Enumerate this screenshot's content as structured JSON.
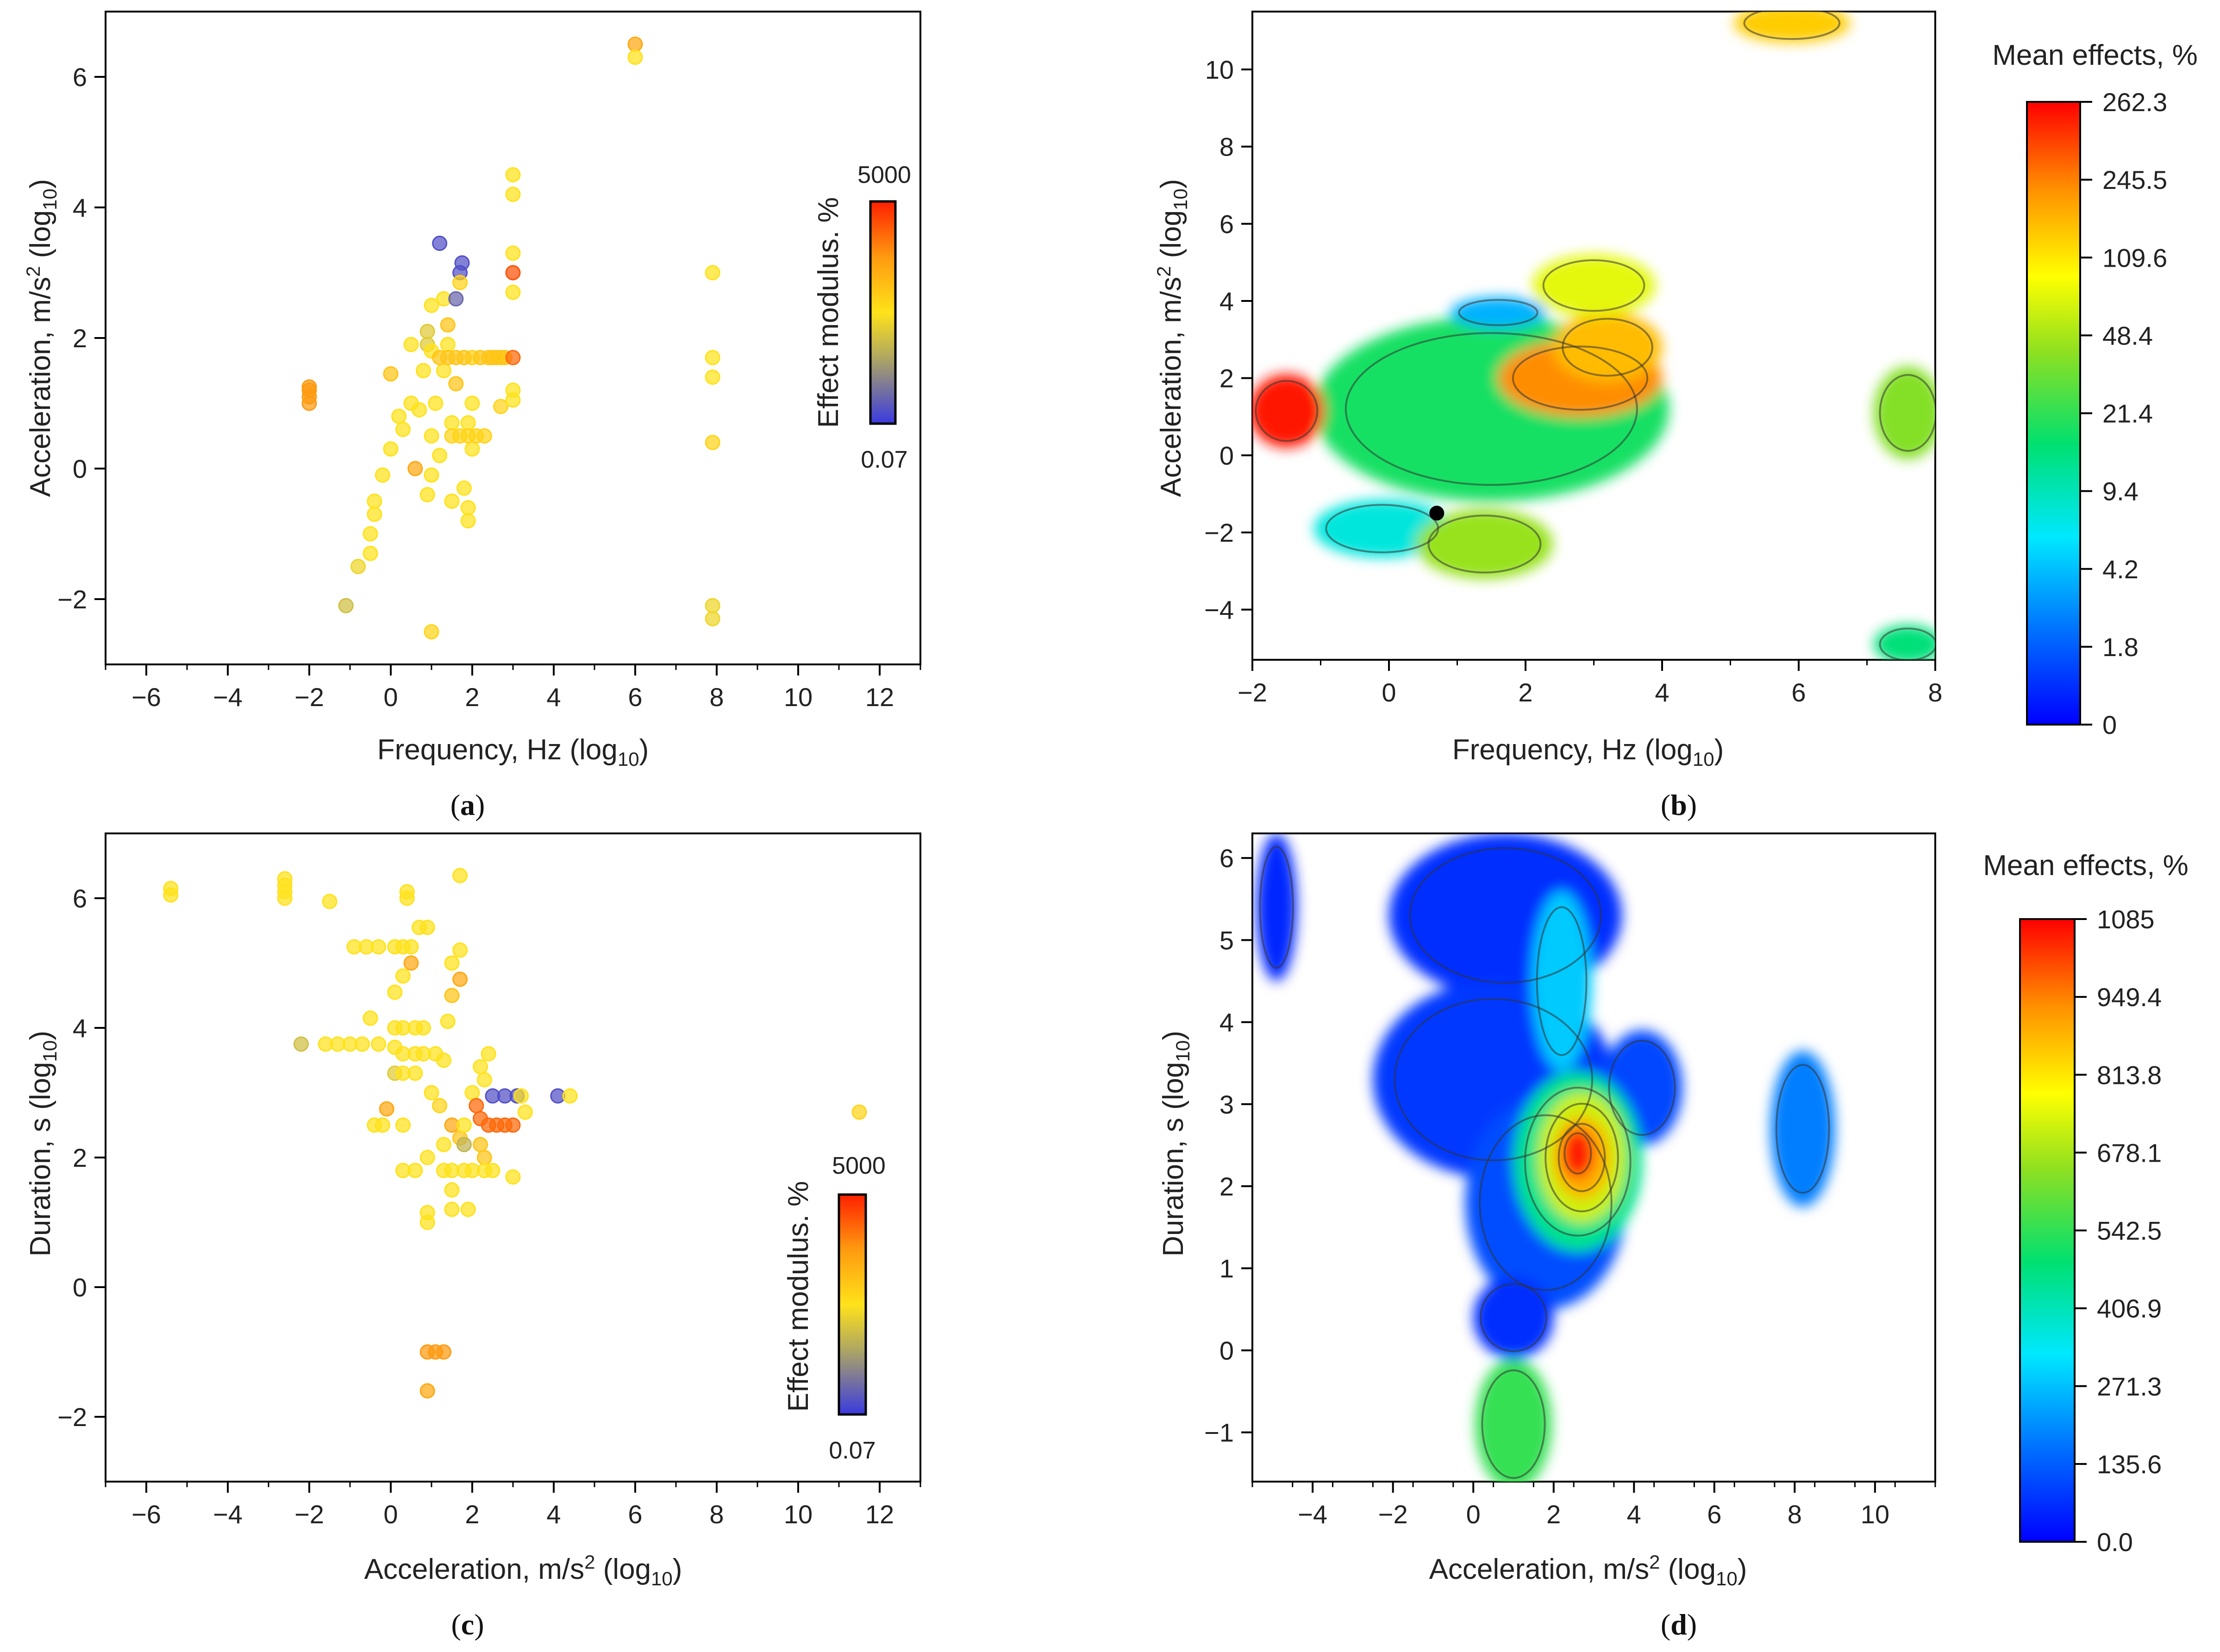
{
  "figure": {
    "captions": [
      "(a)",
      "(b)",
      "(c)",
      "(d)"
    ],
    "caption_letters": [
      "a",
      "b",
      "c",
      "d"
    ]
  },
  "chart_data": [
    {
      "id": "a",
      "type": "scatter",
      "title": "",
      "xlabel": "Frequency, Hz (log₁₀)",
      "ylabel": "Acceleration, m/s² (log₁₀)",
      "xlim": [
        -7,
        13
      ],
      "ylim": [
        -3,
        7
      ],
      "xticks": [
        -6,
        -4,
        -2,
        0,
        2,
        4,
        6,
        8,
        10,
        12
      ],
      "xtick_labels": [
        "−6",
        "−4",
        "−2",
        "0",
        "2",
        "4",
        "6",
        "8",
        "10",
        "12"
      ],
      "yticks": [
        -2,
        0,
        2,
        4,
        6
      ],
      "ytick_labels": [
        "−2",
        "0",
        "2",
        "4",
        "6"
      ],
      "colorbar": {
        "label": "Effect modulus. %",
        "max_label": "5000",
        "min_label": "0.07",
        "stops": [
          "#3a3ae0",
          "#b0a860",
          "#ffe21a",
          "#ff9a10",
          "#ff2000"
        ]
      },
      "points": [
        [
          -2,
          1.2,
          0.75
        ],
        [
          -2,
          1.1,
          0.75
        ],
        [
          -2,
          1.0,
          0.75
        ],
        [
          -2,
          1.25,
          0.75
        ],
        [
          -1.1,
          -2.1,
          0.35
        ],
        [
          -0.8,
          -1.5,
          0.45
        ],
        [
          -0.5,
          -1.3,
          0.5
        ],
        [
          -0.5,
          -1.0,
          0.5
        ],
        [
          -0.4,
          -0.5,
          0.5
        ],
        [
          -0.4,
          -0.7,
          0.5
        ],
        [
          -0.2,
          -0.1,
          0.5
        ],
        [
          0,
          1.45,
          0.6
        ],
        [
          0,
          0.3,
          0.5
        ],
        [
          0.2,
          0.8,
          0.5
        ],
        [
          0.3,
          0.6,
          0.5
        ],
        [
          0.5,
          1.0,
          0.5
        ],
        [
          0.5,
          1.9,
          0.5
        ],
        [
          0.6,
          0,
          0.7
        ],
        [
          0.7,
          0.9,
          0.5
        ],
        [
          0.8,
          1.5,
          0.5
        ],
        [
          0.9,
          1.9,
          0.4
        ],
        [
          0.9,
          2.1,
          0.4
        ],
        [
          0.9,
          -0.4,
          0.5
        ],
        [
          1.0,
          2.5,
          0.5
        ],
        [
          1.0,
          0.5,
          0.5
        ],
        [
          1.0,
          1.8,
          0.5
        ],
        [
          1.0,
          -0.1,
          0.5
        ],
        [
          1.1,
          1.0,
          0.5
        ],
        [
          1.2,
          3.45,
          0.05
        ],
        [
          1.2,
          0.2,
          0.5
        ],
        [
          1.3,
          1.5,
          0.5
        ],
        [
          1.3,
          2.6,
          0.5
        ],
        [
          1.4,
          1.9,
          0.5
        ],
        [
          1.4,
          2.2,
          0.6
        ],
        [
          1.5,
          0.7,
          0.5
        ],
        [
          1.5,
          -0.5,
          0.5
        ],
        [
          1.6,
          1.3,
          0.6
        ],
        [
          1.6,
          2.6,
          0.1
        ],
        [
          1.7,
          3.0,
          0.05
        ],
        [
          1.7,
          2.85,
          0.55
        ],
        [
          1.75,
          3.15,
          0.05
        ],
        [
          1.8,
          -0.3,
          0.5
        ],
        [
          1.9,
          0.7,
          0.5
        ],
        [
          1.9,
          -0.6,
          0.5
        ],
        [
          1.9,
          -0.8,
          0.5
        ],
        [
          2.0,
          0.3,
          0.5
        ],
        [
          2.0,
          1.7,
          0.55
        ],
        [
          2.2,
          1.7,
          0.6
        ],
        [
          2.4,
          1.7,
          0.6
        ],
        [
          2.5,
          1.7,
          0.6
        ],
        [
          2.6,
          1.7,
          0.6
        ],
        [
          2.7,
          1.7,
          0.6
        ],
        [
          2.8,
          1.7,
          0.6
        ],
        [
          3.0,
          1.7,
          0.85
        ],
        [
          1.2,
          1.7,
          0.6
        ],
        [
          1.4,
          1.7,
          0.6
        ],
        [
          1.6,
          1.7,
          0.6
        ],
        [
          1.8,
          1.7,
          0.6
        ],
        [
          1.5,
          0.5,
          0.55
        ],
        [
          1.7,
          0.5,
          0.55
        ],
        [
          1.9,
          0.5,
          0.55
        ],
        [
          2.1,
          0.5,
          0.55
        ],
        [
          2.3,
          0.5,
          0.55
        ],
        [
          2.0,
          1.0,
          0.5
        ],
        [
          2.7,
          0.95,
          0.55
        ],
        [
          3.0,
          4.5,
          0.5
        ],
        [
          3.0,
          4.2,
          0.5
        ],
        [
          3.0,
          3.3,
          0.5
        ],
        [
          3.0,
          3.0,
          0.9
        ],
        [
          3.0,
          2.7,
          0.5
        ],
        [
          3.0,
          1.2,
          0.5
        ],
        [
          3.0,
          1.05,
          0.5
        ],
        [
          6.0,
          6.5,
          0.7
        ],
        [
          6.0,
          6.3,
          0.5
        ],
        [
          7.9,
          3.0,
          0.5
        ],
        [
          7.9,
          1.7,
          0.5
        ],
        [
          7.9,
          1.4,
          0.5
        ],
        [
          7.9,
          0.4,
          0.55
        ],
        [
          7.9,
          -2.1,
          0.45
        ],
        [
          7.9,
          -2.3,
          0.45
        ],
        [
          1.0,
          -2.5,
          0.55
        ]
      ]
    },
    {
      "id": "b",
      "type": "heatmap",
      "title": "Mean effects, %",
      "xlabel": "Frequency, Hz (log₁₀)",
      "ylabel": "Acceleration, m/s² (log₁₀)",
      "xlim": [
        -2,
        8
      ],
      "ylim": [
        -5.3,
        11.5
      ],
      "xticks": [
        -2,
        0,
        2,
        4,
        6,
        8
      ],
      "xtick_labels": [
        "−2",
        "0",
        "2",
        "4",
        "6",
        "8"
      ],
      "yticks": [
        -4,
        -2,
        0,
        2,
        4,
        6,
        8,
        10
      ],
      "ytick_labels": [
        "−4",
        "−2",
        "0",
        "2",
        "4",
        "6",
        "8",
        "10"
      ],
      "colorbar": {
        "label": "Mean effects, %",
        "tick_labels": [
          "262.3",
          "245.5",
          "109.6",
          "48.4",
          "21.4",
          "9.4",
          "4.2",
          "1.8",
          "0"
        ]
      },
      "marker": {
        "x": 0.7,
        "y": -1.5
      },
      "regions": [
        {
          "cx": 1.5,
          "cy": 1.2,
          "rx": 2.6,
          "ry": 2.4,
          "level": 0.45
        },
        {
          "cx": 2.8,
          "cy": 2.0,
          "rx": 1.2,
          "ry": 1.0,
          "level": 0.86
        },
        {
          "cx": 3.2,
          "cy": 2.8,
          "rx": 0.8,
          "ry": 0.9,
          "level": 0.8
        },
        {
          "cx": 1.6,
          "cy": 3.7,
          "rx": 0.7,
          "ry": 0.4,
          "level": 0.22
        },
        {
          "cx": 3.0,
          "cy": 4.4,
          "rx": 0.9,
          "ry": 0.8,
          "level": 0.68
        },
        {
          "cx": -0.1,
          "cy": -1.9,
          "rx": 1.0,
          "ry": 0.75,
          "level": 0.32
        },
        {
          "cx": 1.4,
          "cy": -2.3,
          "rx": 1.0,
          "ry": 0.9,
          "level": 0.58
        },
        {
          "cx": -1.5,
          "cy": 1.15,
          "rx": 0.55,
          "ry": 0.95,
          "level": 0.98
        },
        {
          "cx": 5.9,
          "cy": 11.2,
          "rx": 0.85,
          "ry": 0.5,
          "level": 0.78
        },
        {
          "cx": 7.6,
          "cy": 1.1,
          "rx": 0.5,
          "ry": 1.2,
          "level": 0.56
        },
        {
          "cx": 7.6,
          "cy": -4.9,
          "rx": 0.5,
          "ry": 0.5,
          "level": 0.42
        }
      ]
    },
    {
      "id": "c",
      "type": "scatter",
      "title": "",
      "xlabel": "Acceleration, m/s² (log₁₀)",
      "ylabel": "Duration, s (log₁₀)",
      "xlim": [
        -7,
        13
      ],
      "ylim": [
        -3,
        7
      ],
      "xticks": [
        -6,
        -4,
        -2,
        0,
        2,
        4,
        6,
        8,
        10,
        12
      ],
      "xtick_labels": [
        "−6",
        "−4",
        "−2",
        "0",
        "2",
        "4",
        "6",
        "8",
        "10",
        "12"
      ],
      "yticks": [
        -2,
        0,
        2,
        4,
        6
      ],
      "ytick_labels": [
        "−2",
        "0",
        "2",
        "4",
        "6"
      ],
      "colorbar": {
        "label": "Effect modulus. %",
        "max_label": "5000",
        "min_label": "0.07",
        "stops": [
          "#3a3ae0",
          "#b0a860",
          "#ffe21a",
          "#ff9a10",
          "#ff2000"
        ]
      },
      "points": [
        [
          -5.4,
          6.15,
          0.5
        ],
        [
          -5.4,
          6.05,
          0.5
        ],
        [
          -2.6,
          6.3,
          0.5
        ],
        [
          -2.6,
          6.2,
          0.5
        ],
        [
          -2.6,
          6.1,
          0.5
        ],
        [
          -2.6,
          6.0,
          0.5
        ],
        [
          -1.5,
          5.95,
          0.5
        ],
        [
          -2.2,
          3.75,
          0.35
        ],
        [
          -1.6,
          3.75,
          0.5
        ],
        [
          -1.3,
          3.75,
          0.5
        ],
        [
          -1.0,
          3.75,
          0.5
        ],
        [
          -0.7,
          3.75,
          0.5
        ],
        [
          -0.5,
          4.15,
          0.5
        ],
        [
          -0.3,
          3.75,
          0.5
        ],
        [
          -0.9,
          5.25,
          0.5
        ],
        [
          -0.6,
          5.25,
          0.5
        ],
        [
          -0.3,
          5.25,
          0.5
        ],
        [
          0.1,
          5.25,
          0.5
        ],
        [
          0.3,
          5.25,
          0.5
        ],
        [
          0.5,
          5.25,
          0.5
        ],
        [
          0.4,
          6.1,
          0.5
        ],
        [
          0.4,
          6.0,
          0.5
        ],
        [
          0.7,
          5.55,
          0.5
        ],
        [
          0.9,
          5.55,
          0.5
        ],
        [
          0.5,
          5.0,
          0.7
        ],
        [
          0.3,
          4.8,
          0.5
        ],
        [
          0.1,
          4.55,
          0.5
        ],
        [
          0.1,
          4.0,
          0.5
        ],
        [
          0.3,
          4.0,
          0.5
        ],
        [
          0.6,
          4.0,
          0.5
        ],
        [
          0.8,
          4.0,
          0.5
        ],
        [
          0.1,
          3.7,
          0.5
        ],
        [
          0.3,
          3.6,
          0.5
        ],
        [
          0.6,
          3.6,
          0.5
        ],
        [
          0.8,
          3.6,
          0.5
        ],
        [
          1.1,
          3.6,
          0.5
        ],
        [
          1.3,
          3.5,
          0.5
        ],
        [
          0.1,
          3.3,
          0.4
        ],
        [
          0.3,
          3.3,
          0.5
        ],
        [
          0.6,
          3.3,
          0.5
        ],
        [
          -0.1,
          2.75,
          0.7
        ],
        [
          0.3,
          2.5,
          0.5
        ],
        [
          -0.4,
          2.5,
          0.5
        ],
        [
          -0.2,
          2.5,
          0.5
        ],
        [
          1.0,
          3.0,
          0.5
        ],
        [
          1.2,
          2.8,
          0.55
        ],
        [
          1.4,
          4.1,
          0.5
        ],
        [
          1.5,
          4.5,
          0.6
        ],
        [
          1.7,
          4.75,
          0.7
        ],
        [
          1.5,
          5.0,
          0.5
        ],
        [
          1.7,
          5.2,
          0.5
        ],
        [
          1.7,
          6.35,
          0.5
        ],
        [
          1.3,
          2.2,
          0.5
        ],
        [
          1.5,
          2.5,
          0.7
        ],
        [
          1.7,
          2.3,
          0.6
        ],
        [
          1.8,
          2.2,
          0.3
        ],
        [
          1.8,
          2.5,
          0.5
        ],
        [
          2.0,
          3.0,
          0.5
        ],
        [
          2.2,
          3.4,
          0.5
        ],
        [
          2.3,
          3.2,
          0.5
        ],
        [
          2.4,
          3.6,
          0.5
        ],
        [
          2.1,
          2.8,
          0.85
        ],
        [
          2.2,
          2.6,
          0.85
        ],
        [
          2.2,
          2.2,
          0.6
        ],
        [
          2.3,
          2.0,
          0.6
        ],
        [
          2.4,
          2.5,
          0.85
        ],
        [
          2.6,
          2.5,
          0.85
        ],
        [
          2.8,
          2.5,
          0.85
        ],
        [
          3.0,
          2.5,
          0.85
        ],
        [
          2.5,
          2.95,
          0.05
        ],
        [
          2.8,
          2.95,
          0.05
        ],
        [
          3.1,
          2.95,
          0.05
        ],
        [
          3.2,
          2.95,
          0.5
        ],
        [
          3.3,
          2.7,
          0.5
        ],
        [
          4.1,
          2.95,
          0.05
        ],
        [
          4.4,
          2.95,
          0.5
        ],
        [
          0.3,
          1.8,
          0.5
        ],
        [
          0.6,
          1.8,
          0.5
        ],
        [
          0.9,
          2.0,
          0.5
        ],
        [
          1.3,
          1.8,
          0.5
        ],
        [
          1.5,
          1.8,
          0.5
        ],
        [
          1.8,
          1.8,
          0.5
        ],
        [
          2.0,
          1.8,
          0.5
        ],
        [
          2.3,
          1.8,
          0.5
        ],
        [
          2.5,
          1.8,
          0.5
        ],
        [
          3.0,
          1.7,
          0.5
        ],
        [
          1.5,
          1.5,
          0.5
        ],
        [
          1.5,
          1.2,
          0.5
        ],
        [
          1.9,
          1.2,
          0.5
        ],
        [
          0.9,
          1.15,
          0.5
        ],
        [
          0.9,
          1.0,
          0.5
        ],
        [
          0.9,
          -1.0,
          0.75
        ],
        [
          1.1,
          -1.0,
          0.75
        ],
        [
          1.3,
          -1.0,
          0.75
        ],
        [
          0.9,
          -1.6,
          0.7
        ],
        [
          11.5,
          2.7,
          0.55
        ]
      ]
    },
    {
      "id": "d",
      "type": "heatmap",
      "title": "Mean effects, %",
      "xlabel": "Acceleration, m/s² (log₁₀)",
      "ylabel": "Duration, s (log₁₀)",
      "xlim": [
        -5.5,
        11.5
      ],
      "ylim": [
        -1.6,
        6.3
      ],
      "xticks": [
        -4,
        -2,
        0,
        2,
        4,
        6,
        8,
        10
      ],
      "xtick_labels": [
        "−4",
        "−2",
        "0",
        "2",
        "4",
        "6",
        "8",
        "10"
      ],
      "yticks": [
        -1,
        0,
        1,
        2,
        3,
        4,
        5,
        6
      ],
      "ytick_labels": [
        "−1",
        "0",
        "1",
        "2",
        "3",
        "4",
        "5",
        "6"
      ],
      "colorbar": {
        "label": "Mean effects, %",
        "tick_labels": [
          "1085",
          "949.4",
          "813.8",
          "678.1",
          "542.5",
          "406.9",
          "271.3",
          "135.6",
          "0.0"
        ]
      },
      "regions": [
        {
          "cx": -4.9,
          "cy": 5.4,
          "rx": 0.5,
          "ry": 0.9,
          "level": 0.05
        },
        {
          "cx": 0.8,
          "cy": 5.3,
          "rx": 2.9,
          "ry": 1.0,
          "level": 0.06
        },
        {
          "cx": 0.5,
          "cy": 3.3,
          "rx": 3.0,
          "ry": 1.2,
          "level": 0.07
        },
        {
          "cx": 1.8,
          "cy": 1.8,
          "rx": 2.0,
          "ry": 1.3,
          "level": 0.1
        },
        {
          "cx": 4.2,
          "cy": 3.2,
          "rx": 1.0,
          "ry": 0.7,
          "level": 0.09
        },
        {
          "cx": 1.0,
          "cy": 0.4,
          "rx": 1.0,
          "ry": 0.5,
          "level": 0.06
        },
        {
          "cx": 2.2,
          "cy": 4.5,
          "rx": 0.75,
          "ry": 1.1,
          "level": 0.25
        },
        {
          "cx": 2.6,
          "cy": 2.3,
          "rx": 1.6,
          "ry": 1.1,
          "level": 0.4
        },
        {
          "cx": 2.7,
          "cy": 2.35,
          "rx": 1.1,
          "ry": 0.8,
          "level": 0.65
        },
        {
          "cx": 2.7,
          "cy": 2.35,
          "rx": 0.7,
          "ry": 0.5,
          "level": 0.82
        },
        {
          "cx": 2.6,
          "cy": 2.4,
          "rx": 0.4,
          "ry": 0.3,
          "level": 0.97
        },
        {
          "cx": 8.2,
          "cy": 2.7,
          "rx": 0.8,
          "ry": 0.95,
          "level": 0.16
        },
        {
          "cx": 1.0,
          "cy": -0.9,
          "rx": 0.95,
          "ry": 0.8,
          "level": 0.48
        }
      ]
    }
  ]
}
